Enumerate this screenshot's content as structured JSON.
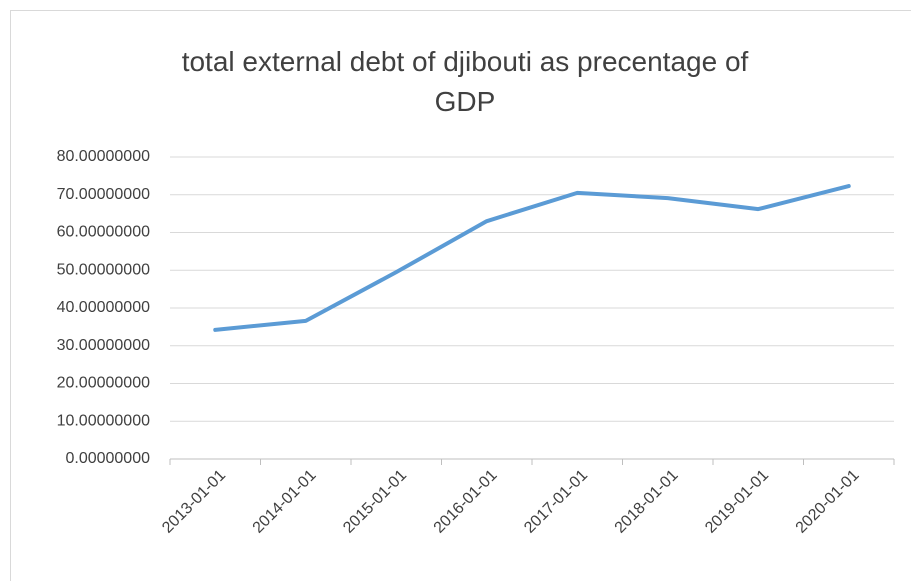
{
  "chart_data": {
    "type": "line",
    "title": "total external debt of djibouti as precentage of GDP",
    "categories": [
      "2013-01-01",
      "2014-01-01",
      "2015-01-01",
      "2016-01-01",
      "2017-01-01",
      "2018-01-01",
      "2019-01-01",
      "2020-01-01"
    ],
    "series": [
      {
        "name": "total external debt of djibouti as precentage of GDP",
        "color": "#5b9bd5",
        "values": [
          34.2,
          36.6,
          49.5,
          63.0,
          70.5,
          69.1,
          66.2,
          72.3
        ]
      }
    ],
    "ylim": [
      0,
      80
    ],
    "yticks": [
      {
        "value": 0,
        "label": "0.00000000"
      },
      {
        "value": 10,
        "label": "10.00000000"
      },
      {
        "value": 20,
        "label": "20.00000000"
      },
      {
        "value": 30,
        "label": "30.00000000"
      },
      {
        "value": 40,
        "label": "40.00000000"
      },
      {
        "value": 50,
        "label": "50.00000000"
      },
      {
        "value": 60,
        "label": "60.00000000"
      },
      {
        "value": 70,
        "label": "70.00000000"
      },
      {
        "value": 80,
        "label": "80.00000000"
      }
    ],
    "grid": true
  }
}
